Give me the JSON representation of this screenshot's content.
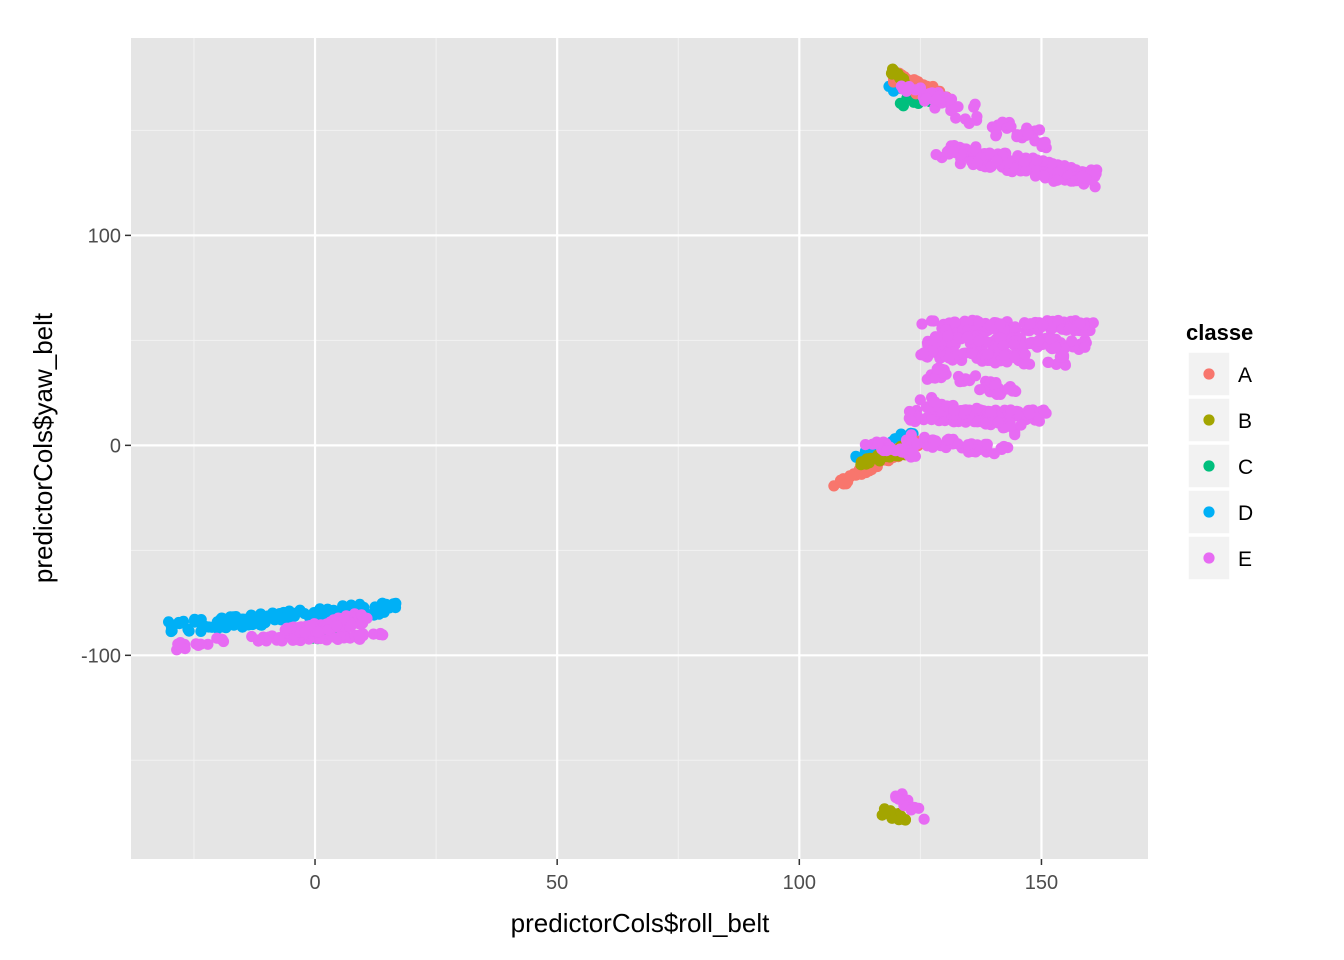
{
  "chart_data": {
    "type": "scatter",
    "title": "",
    "xlabel": "predictorCols$roll_belt",
    "ylabel": "predictorCols$yaw_belt",
    "xlim": [
      -38,
      172
    ],
    "ylim": [
      -197,
      194
    ],
    "x_ticks": [
      0,
      50,
      100,
      150
    ],
    "y_ticks": [
      -100,
      0,
      100
    ],
    "x_tick_labels": [
      "0",
      "50",
      "100",
      "150"
    ],
    "y_tick_labels": [
      "-100",
      "0",
      "100"
    ],
    "grid": true,
    "legend": {
      "title": "classe",
      "position": "right",
      "entries": [
        "A",
        "B",
        "C",
        "D",
        "E"
      ]
    },
    "colors": {
      "A": "#F8766D",
      "B": "#A3A500",
      "C": "#00BF7D",
      "D": "#00B0F6",
      "E": "#E76BF3",
      "panel": "#E5E5E5",
      "grid_major": "#FFFFFF",
      "grid_minor": "#F2F2F2"
    },
    "series": [
      {
        "name": "D",
        "clusters": [
          {
            "x0": -29,
            "y0": -87,
            "x1": 16,
            "y1": -77,
            "spread": 3,
            "n": 140
          },
          {
            "x0": 112,
            "y0": -5,
            "x1": 123,
            "y1": 4,
            "spread": 2.5,
            "n": 40
          },
          {
            "x0": 119,
            "y0": 171,
            "x1": 128,
            "y1": 166,
            "spread": 2.5,
            "n": 25
          }
        ]
      },
      {
        "name": "C",
        "clusters": [
          {
            "x0": 116,
            "y0": -6,
            "x1": 122,
            "y1": -2,
            "spread": 2,
            "n": 15
          },
          {
            "x0": 122,
            "y0": 163,
            "x1": 128,
            "y1": 165,
            "spread": 2,
            "n": 15
          },
          {
            "x0": -2,
            "y0": -92,
            "x1": 5,
            "y1": -88,
            "spread": 1.5,
            "n": 10
          }
        ]
      },
      {
        "name": "A",
        "clusters": [
          {
            "x0": 108,
            "y0": -18,
            "x1": 125,
            "y1": 2,
            "spread": 1.5,
            "n": 70
          },
          {
            "x0": 120,
            "y0": 176,
            "x1": 130,
            "y1": 165,
            "spread": 3,
            "n": 40
          }
        ]
      },
      {
        "name": "B",
        "clusters": [
          {
            "x0": 113,
            "y0": -8,
            "x1": 122,
            "y1": -2,
            "spread": 2,
            "n": 30
          },
          {
            "x0": 119,
            "y0": 178,
            "x1": 122,
            "y1": 174,
            "spread": 1.5,
            "n": 14
          },
          {
            "x0": 117,
            "y0": -174,
            "x1": 122,
            "y1": -178,
            "spread": 1.5,
            "n": 18
          }
        ]
      },
      {
        "name": "E",
        "clusters": [
          {
            "x0": -29,
            "y0": -96,
            "x1": -18,
            "y1": -92,
            "spread": 1.5,
            "n": 14
          },
          {
            "x0": -14,
            "y0": -92,
            "x1": 14,
            "y1": -91,
            "spread": 1.5,
            "n": 55
          },
          {
            "x0": -6,
            "y0": -90,
            "x1": 10,
            "y1": -82,
            "spread": 2.5,
            "n": 70
          },
          {
            "x0": 113,
            "y0": 2,
            "x1": 124,
            "y1": -4,
            "spread": 2,
            "n": 25
          },
          {
            "x0": 120,
            "y0": -166,
            "x1": 127,
            "y1": -180,
            "spread": 1.5,
            "n": 12
          },
          {
            "x0": 122,
            "y0": 170,
            "x1": 131,
            "y1": 162,
            "spread": 3,
            "n": 30
          },
          {
            "x0": 133,
            "y0": 160,
            "x1": 152,
            "y1": 143,
            "spread": 4,
            "n": 40
          },
          {
            "x0": 130,
            "y0": 140,
            "x1": 161,
            "y1": 127,
            "spread": 4,
            "n": 160
          },
          {
            "x0": 126,
            "y0": 57,
            "x1": 160,
            "y1": 57,
            "spread": 2.5,
            "n": 110
          },
          {
            "x0": 126,
            "y0": 50,
            "x1": 160,
            "y1": 48,
            "spread": 2.5,
            "n": 110
          },
          {
            "x0": 125,
            "y0": 43,
            "x1": 157,
            "y1": 40,
            "spread": 2.5,
            "n": 60
          },
          {
            "x0": 126,
            "y0": 35,
            "x1": 145,
            "y1": 25,
            "spread": 3,
            "n": 40
          },
          {
            "x0": 123,
            "y0": 14,
            "x1": 150,
            "y1": 14,
            "spread": 3,
            "n": 110
          },
          {
            "x0": 125,
            "y0": 22,
            "x1": 146,
            "y1": 8,
            "spread": 3,
            "n": 50
          },
          {
            "x0": 123,
            "y0": 3,
            "x1": 143,
            "y1": -3,
            "spread": 2.5,
            "n": 40
          }
        ]
      }
    ]
  }
}
